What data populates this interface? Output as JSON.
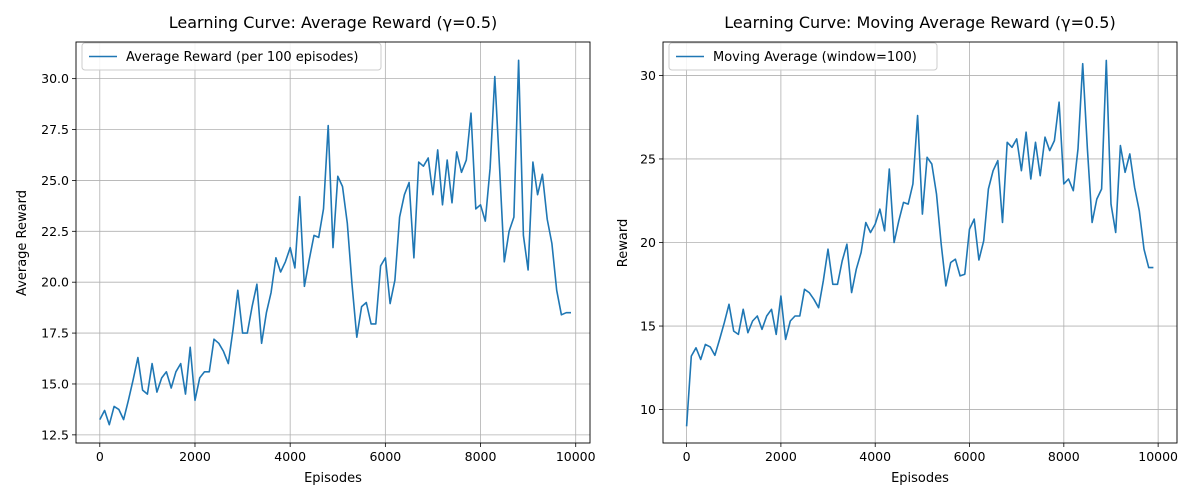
{
  "colors": {
    "series": "#1f77b4",
    "grid": "#b0b0b0",
    "frame": "#000000",
    "legend_border": "#cccccc"
  },
  "chart_data": [
    {
      "type": "line",
      "title": "Learning Curve: Average Reward (γ=0.5)",
      "xlabel": "Episodes",
      "ylabel": "Average Reward",
      "xlim": [
        -500,
        10300
      ],
      "ylim": [
        12.1,
        31.8
      ],
      "xticks": [
        0,
        2000,
        4000,
        6000,
        8000,
        10000
      ],
      "xtick_labels": [
        "0",
        "2000",
        "4000",
        "6000",
        "8000",
        "10000"
      ],
      "yticks": [
        12.5,
        15.0,
        17.5,
        20.0,
        22.5,
        25.0,
        27.5,
        30.0
      ],
      "ytick_labels": [
        "12.5",
        "15.0",
        "17.5",
        "20.0",
        "22.5",
        "25.0",
        "27.5",
        "30.0"
      ],
      "grid": true,
      "legend_position": "upper-left",
      "series": [
        {
          "name": "Average Reward (per 100 episodes)",
          "x": [
            0,
            100,
            200,
            300,
            400,
            500,
            600,
            700,
            800,
            900,
            1000,
            1100,
            1200,
            1300,
            1400,
            1500,
            1600,
            1700,
            1800,
            1900,
            2000,
            2100,
            2200,
            2300,
            2400,
            2500,
            2600,
            2700,
            2800,
            2900,
            3000,
            3100,
            3200,
            3300,
            3400,
            3500,
            3600,
            3700,
            3800,
            3900,
            4000,
            4100,
            4200,
            4300,
            4400,
            4500,
            4600,
            4700,
            4800,
            4900,
            5000,
            5100,
            5200,
            5300,
            5400,
            5500,
            5600,
            5700,
            5800,
            5900,
            6000,
            6100,
            6200,
            6300,
            6400,
            6500,
            6600,
            6700,
            6800,
            6900,
            7000,
            7100,
            7200,
            7300,
            7400,
            7500,
            7600,
            7700,
            7800,
            7900,
            8000,
            8100,
            8200,
            8300,
            8400,
            8500,
            8600,
            8700,
            8800,
            8900,
            9000,
            9100,
            9200,
            9300,
            9400,
            9500,
            9600,
            9700,
            9800,
            9900
          ],
          "y": [
            13.25,
            13.7,
            13.0,
            13.9,
            13.75,
            13.25,
            14.2,
            15.2,
            16.3,
            14.7,
            14.5,
            16.0,
            14.6,
            15.3,
            15.6,
            14.8,
            15.6,
            16.0,
            14.5,
            16.8,
            14.2,
            15.3,
            15.6,
            15.6,
            17.2,
            17.0,
            16.6,
            16.0,
            17.7,
            19.6,
            17.5,
            17.5,
            18.8,
            19.9,
            17.0,
            18.5,
            19.5,
            21.2,
            20.5,
            21.0,
            21.7,
            20.7,
            24.2,
            19.8,
            21.1,
            22.3,
            22.2,
            23.6,
            27.7,
            21.7,
            25.2,
            24.7,
            22.9,
            19.9,
            17.3,
            18.8,
            19.0,
            17.95,
            17.95,
            20.8,
            21.2,
            18.95,
            20.1,
            23.2,
            24.3,
            24.9,
            21.2,
            25.9,
            25.7,
            26.1,
            24.3,
            26.5,
            23.8,
            26.0,
            23.9,
            26.4,
            25.4,
            26.0,
            28.3,
            23.6,
            23.8,
            23.0,
            25.6,
            30.1,
            25.6,
            21.0,
            22.5,
            23.2,
            30.9,
            22.3,
            20.6,
            25.9,
            24.3,
            25.3,
            23.1,
            21.9,
            19.6,
            18.4,
            18.5,
            18.5
          ]
        }
      ]
    },
    {
      "type": "line",
      "title": "Learning Curve: Moving Average Reward (γ=0.5)",
      "xlabel": "Episodes",
      "ylabel": "Reward",
      "xlim": [
        -500,
        10400
      ],
      "ylim": [
        8.0,
        32.0
      ],
      "xticks": [
        0,
        2000,
        4000,
        6000,
        8000,
        10000
      ],
      "xtick_labels": [
        "0",
        "2000",
        "4000",
        "6000",
        "8000",
        "10000"
      ],
      "yticks": [
        10,
        15,
        20,
        25,
        30
      ],
      "ytick_labels": [
        "10",
        "15",
        "20",
        "25",
        "30"
      ],
      "grid": true,
      "legend_position": "upper-left",
      "series": [
        {
          "name": "Moving Average (window=100)",
          "x": [
            0,
            100,
            200,
            300,
            400,
            500,
            600,
            700,
            800,
            900,
            1000,
            1100,
            1200,
            1300,
            1400,
            1500,
            1600,
            1700,
            1800,
            1900,
            2000,
            2100,
            2200,
            2300,
            2400,
            2500,
            2600,
            2700,
            2800,
            2900,
            3000,
            3100,
            3200,
            3300,
            3400,
            3500,
            3600,
            3700,
            3800,
            3900,
            4000,
            4100,
            4200,
            4300,
            4400,
            4500,
            4600,
            4700,
            4800,
            4900,
            5000,
            5100,
            5200,
            5300,
            5400,
            5500,
            5600,
            5700,
            5800,
            5900,
            6000,
            6100,
            6200,
            6300,
            6400,
            6500,
            6600,
            6700,
            6800,
            6900,
            7000,
            7100,
            7200,
            7300,
            7400,
            7500,
            7600,
            7700,
            7800,
            7900,
            8000,
            8100,
            8200,
            8300,
            8400,
            8500,
            8600,
            8700,
            8800,
            8900,
            9000,
            9100,
            9200,
            9300,
            9400,
            9500,
            9600,
            9700,
            9800,
            9900
          ],
          "y": [
            9.0,
            13.2,
            13.7,
            13.0,
            13.9,
            13.75,
            13.25,
            14.2,
            15.2,
            16.3,
            14.7,
            14.5,
            16.0,
            14.6,
            15.3,
            15.6,
            14.8,
            15.6,
            16.0,
            14.5,
            16.8,
            14.2,
            15.3,
            15.6,
            15.6,
            17.2,
            17.0,
            16.6,
            16.1,
            17.7,
            19.6,
            17.5,
            17.5,
            18.9,
            19.9,
            17.0,
            18.4,
            19.4,
            21.2,
            20.6,
            21.1,
            22.0,
            20.7,
            24.4,
            20.0,
            21.3,
            22.4,
            22.3,
            23.5,
            27.6,
            21.7,
            25.1,
            24.7,
            22.9,
            19.9,
            17.4,
            18.8,
            19.0,
            18.0,
            18.1,
            20.8,
            21.4,
            18.95,
            20.1,
            23.2,
            24.3,
            24.9,
            21.2,
            26.0,
            25.7,
            26.2,
            24.3,
            26.6,
            23.8,
            26.0,
            24.0,
            26.3,
            25.5,
            26.1,
            28.4,
            23.5,
            23.8,
            23.1,
            25.6,
            30.7,
            25.6,
            21.2,
            22.6,
            23.2,
            30.9,
            22.3,
            20.6,
            25.8,
            24.2,
            25.3,
            23.3,
            21.9,
            19.6,
            18.5,
            18.5
          ]
        }
      ]
    }
  ]
}
